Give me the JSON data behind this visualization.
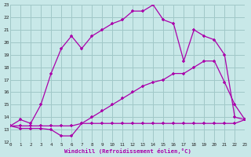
{
  "bg": "#c8e8e8",
  "grid_color": "#a0c8c8",
  "lc": "#aa00aa",
  "xlabel": "Windchill (Refroidissement éolien,°C)",
  "xlim": [
    0,
    23
  ],
  "ylim": [
    12,
    23
  ],
  "line_arch_x": [
    0,
    1,
    2,
    3,
    4,
    5,
    6,
    7,
    8,
    9,
    10,
    11,
    12,
    13,
    14,
    15,
    16,
    17,
    18,
    19,
    20,
    21,
    22,
    23
  ],
  "line_arch_y": [
    13.3,
    13.8,
    13.5,
    15.0,
    17.5,
    19.5,
    20.5,
    19.5,
    20.5,
    21.0,
    21.5,
    21.8,
    22.5,
    22.5,
    23.0,
    21.8,
    21.5,
    18.5,
    21.0,
    20.5,
    20.2,
    19.0,
    14.0,
    13.8
  ],
  "line_mid_x": [
    0,
    1,
    2,
    3,
    4,
    5,
    6,
    7,
    8,
    9,
    10,
    11,
    12,
    13,
    14,
    15,
    16,
    17,
    18,
    19,
    20,
    21,
    22,
    23
  ],
  "line_mid_y": [
    13.3,
    13.3,
    13.3,
    13.3,
    13.3,
    13.3,
    13.3,
    13.5,
    14.0,
    14.5,
    15.0,
    15.5,
    16.0,
    16.5,
    16.8,
    17.0,
    17.5,
    17.5,
    18.0,
    18.5,
    18.5,
    16.8,
    15.0,
    13.8
  ],
  "line_flat_x": [
    0,
    1,
    2,
    3,
    4,
    5,
    6,
    7,
    8,
    9,
    10,
    11,
    12,
    13,
    14,
    15,
    16,
    17,
    18,
    19,
    20,
    21,
    22,
    23
  ],
  "line_flat_y": [
    13.3,
    13.1,
    13.1,
    13.1,
    13.0,
    12.5,
    12.5,
    13.5,
    13.5,
    13.5,
    13.5,
    13.5,
    13.5,
    13.5,
    13.5,
    13.5,
    13.5,
    13.5,
    13.5,
    13.5,
    13.5,
    13.5,
    13.5,
    13.8
  ]
}
